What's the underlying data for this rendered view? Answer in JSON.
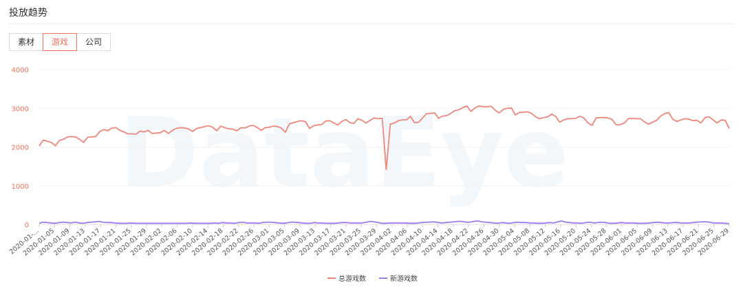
{
  "header": {
    "title": "投放趋势"
  },
  "tabs": [
    {
      "label": "素材",
      "active": false
    },
    {
      "label": "游戏",
      "active": true
    },
    {
      "label": "公司",
      "active": false
    }
  ],
  "colors": {
    "accent": "#f0705a",
    "total_line": "#f0857a",
    "new_line": "#9b7cf0",
    "axis_label": "#f0705a"
  },
  "watermark": "DataEye",
  "chart_data": {
    "type": "line",
    "ylim": [
      0,
      4000
    ],
    "yticks": [
      "0",
      "1000",
      "2000",
      "3000",
      "4000"
    ],
    "xticks": [
      "2020-01-...",
      "2020-01-05",
      "2020-01-09",
      "2020-01-13",
      "2020-01-17",
      "2020-01-21",
      "2020-01-25",
      "2020-01-29",
      "2020-02-02",
      "2020-02-06",
      "2020-02-10",
      "2020-02-14",
      "2020-02-18",
      "2020-02-22",
      "2020-02-26",
      "2020-03-01",
      "2020-03-05",
      "2020-03-09",
      "2020-03-13",
      "2020-03-17",
      "2020-03-21",
      "2020-03-25",
      "2020-03-29",
      "2020-04-02",
      "2020-04-06",
      "2020-04-10",
      "2020-04-14",
      "2020-04-18",
      "2020-04-22",
      "2020-04-26",
      "2020-04-30",
      "2020-05-04",
      "2020-05-08",
      "2020-05-12",
      "2020-05-16",
      "2020-05-20",
      "2020-05-24",
      "2020-05-28",
      "2020-06-01",
      "2020-06-05",
      "2020-06-09",
      "2020-06-13",
      "2020-06-17",
      "2020-06-21",
      "2020-06-25",
      "2020-06-29"
    ],
    "legend_position": "bottom-center",
    "series": [
      {
        "name": "总游戏数",
        "values": [
          2030,
          2180,
          2150,
          2120,
          2030,
          2170,
          2200,
          2260,
          2270,
          2260,
          2200,
          2120,
          2250,
          2260,
          2270,
          2400,
          2450,
          2420,
          2490,
          2500,
          2430,
          2390,
          2340,
          2340,
          2330,
          2410,
          2390,
          2430,
          2350,
          2360,
          2370,
          2430,
          2350,
          2430,
          2480,
          2500,
          2490,
          2470,
          2400,
          2480,
          2500,
          2530,
          2550,
          2510,
          2420,
          2540,
          2500,
          2470,
          2460,
          2420,
          2500,
          2490,
          2540,
          2560,
          2510,
          2430,
          2500,
          2510,
          2540,
          2530,
          2490,
          2380,
          2600,
          2630,
          2660,
          2680,
          2650,
          2480,
          2550,
          2570,
          2580,
          2670,
          2680,
          2620,
          2570,
          2660,
          2710,
          2630,
          2610,
          2730,
          2690,
          2620,
          2690,
          2750,
          2730,
          2740,
          1420,
          2590,
          2620,
          2680,
          2700,
          2700,
          2790,
          2630,
          2640,
          2750,
          2860,
          2870,
          2880,
          2740,
          2800,
          2810,
          2870,
          2940,
          2960,
          3020,
          3060,
          2920,
          3010,
          3060,
          3040,
          3040,
          3050,
          2950,
          2880,
          2970,
          3000,
          3010,
          2830,
          2890,
          2900,
          2910,
          2870,
          2780,
          2730,
          2760,
          2780,
          2850,
          2790,
          2640,
          2700,
          2730,
          2730,
          2740,
          2800,
          2750,
          2620,
          2560,
          2750,
          2760,
          2760,
          2750,
          2710,
          2570,
          2580,
          2620,
          2730,
          2740,
          2730,
          2730,
          2650,
          2590,
          2640,
          2690,
          2800,
          2860,
          2890,
          2720,
          2660,
          2700,
          2730,
          2720,
          2680,
          2690,
          2620,
          2760,
          2780,
          2700,
          2620,
          2700,
          2690,
          2480
        ],
        "color": "#f0857a"
      },
      {
        "name": "新游戏数",
        "values": [
          30,
          60,
          50,
          40,
          30,
          50,
          60,
          50,
          40,
          60,
          40,
          30,
          50,
          60,
          70,
          80,
          60,
          50,
          50,
          40,
          30,
          30,
          30,
          40,
          30,
          30,
          30,
          30,
          30,
          30,
          30,
          30,
          30,
          30,
          30,
          30,
          30,
          30,
          40,
          30,
          30,
          30,
          30,
          30,
          40,
          30,
          50,
          40,
          40,
          30,
          50,
          60,
          40,
          40,
          40,
          30,
          50,
          60,
          60,
          50,
          40,
          30,
          40,
          60,
          60,
          50,
          40,
          30,
          30,
          50,
          40,
          40,
          30,
          30,
          30,
          40,
          50,
          50,
          40,
          40,
          40,
          40,
          60,
          80,
          70,
          50,
          30,
          30,
          40,
          40,
          40,
          40,
          40,
          30,
          30,
          40,
          50,
          60,
          60,
          70,
          50,
          40,
          50,
          60,
          70,
          80,
          80,
          60,
          60,
          80,
          90,
          70,
          60,
          50,
          40,
          30,
          50,
          40,
          30,
          50,
          60,
          50,
          50,
          40,
          40,
          30,
          30,
          40,
          50,
          40,
          70,
          90,
          60,
          50,
          40,
          40,
          30,
          50,
          60,
          40,
          50,
          60,
          50,
          30,
          30,
          40,
          50,
          40,
          40,
          40,
          30,
          30,
          30,
          40,
          50,
          60,
          50,
          40,
          40,
          50,
          50,
          40,
          40,
          40,
          50,
          60,
          70,
          70,
          60,
          40,
          40,
          40,
          30,
          20
        ],
        "color": "#9b7cf0"
      }
    ]
  }
}
